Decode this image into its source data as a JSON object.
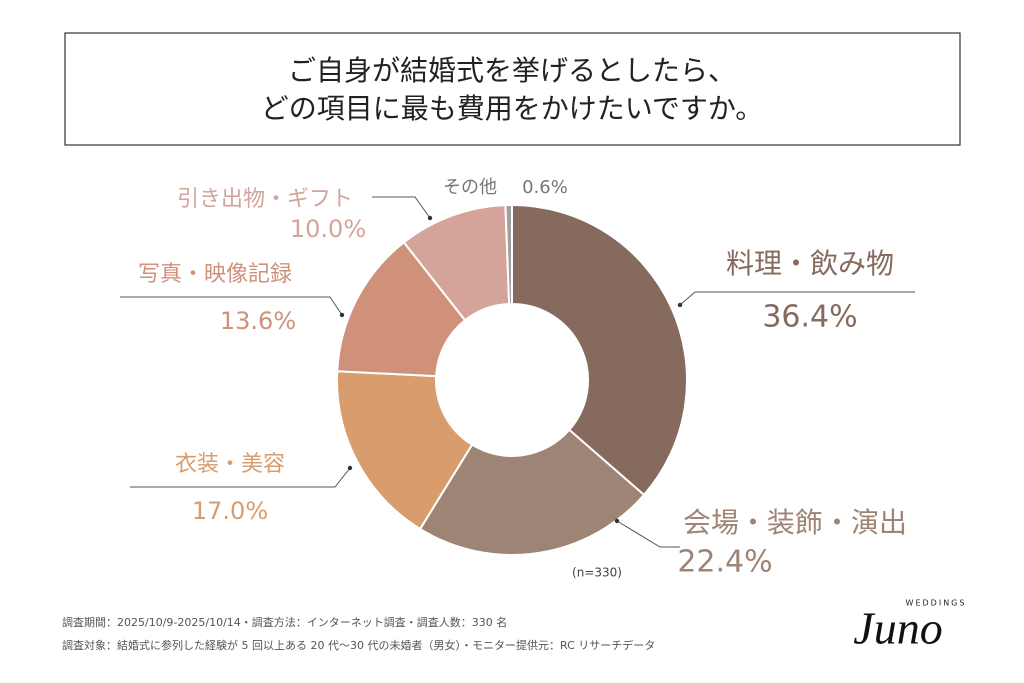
{
  "chart_data": {
    "type": "donut",
    "title": [
      "ご自身が結婚式を挙げるとしたら、",
      "どの項目に最も費用をかけたいですか。"
    ],
    "categories": [
      "料理・飲み物",
      "会場・装飾・演出",
      "衣装・美容",
      "写真・映像記録",
      "引き出物・ギフト",
      "その他"
    ],
    "values": [
      36.4,
      22.4,
      17.0,
      13.6,
      10.0,
      0.6
    ],
    "value_labels": [
      "36.4%",
      "22.4%",
      "17.0%",
      "13.6%",
      "10.0%",
      "0.6%"
    ],
    "colors": [
      "#876a5e",
      "#9e8474",
      "#d99c6c",
      "#cf917a",
      "#d4a49a",
      "#a0a0a0"
    ],
    "note": "(n=330)"
  },
  "footer": [
    "調査期間：2025/10/9-2025/10/14・調査方法：インターネット調査・調査人数：330 名",
    "調査対象：結婚式に参列した経験が 5 回以上ある 20 代〜30 代の未婚者（男女）・モニター提供元：RC リサーチデータ"
  ],
  "logo": {
    "name": "Juno",
    "sub": "WEDDINGS"
  }
}
